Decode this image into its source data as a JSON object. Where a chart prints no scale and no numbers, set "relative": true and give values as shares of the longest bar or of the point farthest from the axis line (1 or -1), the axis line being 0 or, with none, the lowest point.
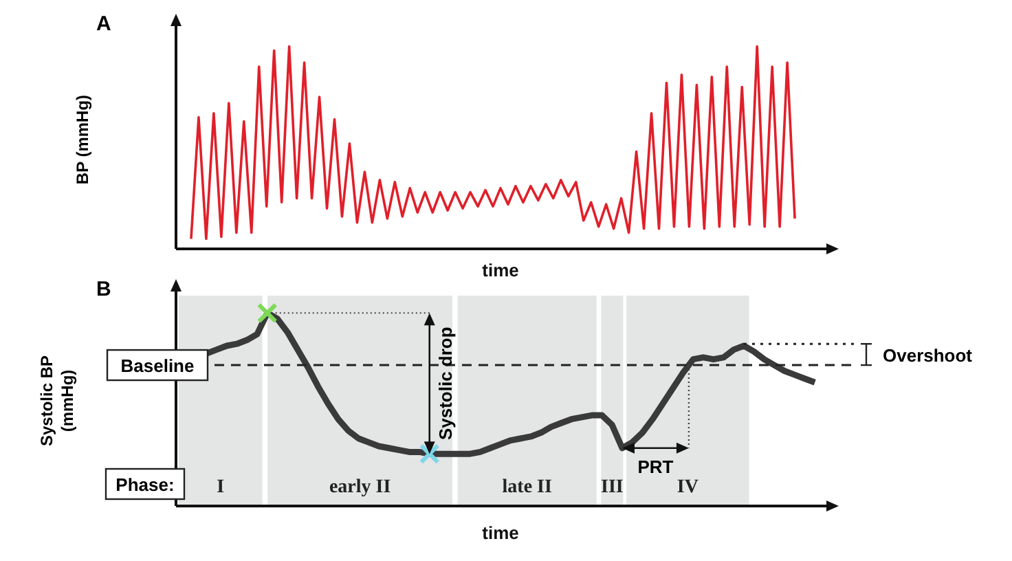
{
  "chart_data": [
    {
      "type": "line",
      "title": "A",
      "xlabel": "time",
      "ylabel": "BP (mmHg)",
      "relative": true,
      "legend": false,
      "grid": false,
      "marker": "none",
      "line_style": "solid",
      "categories": [
        null,
        null,
        null,
        null,
        null,
        null,
        null,
        null,
        null,
        null,
        null,
        null,
        null,
        null,
        null,
        null,
        null,
        null,
        null,
        null,
        null,
        null,
        null,
        null,
        null,
        null,
        null,
        null,
        null,
        null,
        null,
        null,
        null,
        null,
        null,
        null,
        null,
        null,
        null,
        null,
        null,
        null,
        null,
        null,
        null,
        null,
        null,
        null,
        null,
        null,
        null,
        null,
        null,
        null,
        null,
        null,
        null,
        null,
        null,
        null,
        null,
        null,
        null,
        null,
        null,
        null,
        null,
        null,
        null,
        null,
        null,
        null,
        null,
        null,
        null,
        null,
        null,
        null,
        null,
        null,
        null
      ],
      "series": [
        {
          "color": "#e0202a",
          "values": [
            0.05,
            0.65,
            0.05,
            0.67,
            0.06,
            0.72,
            0.08,
            0.63,
            0.08,
            0.9,
            0.21,
            0.98,
            0.23,
            1.0,
            0.25,
            0.92,
            0.25,
            0.75,
            0.2,
            0.64,
            0.16,
            0.52,
            0.13,
            0.38,
            0.13,
            0.34,
            0.15,
            0.33,
            0.16,
            0.3,
            0.18,
            0.28,
            0.18,
            0.28,
            0.19,
            0.28,
            0.2,
            0.28,
            0.21,
            0.29,
            0.21,
            0.3,
            0.22,
            0.31,
            0.23,
            0.31,
            0.24,
            0.32,
            0.25,
            0.34,
            0.26,
            0.33,
            0.14,
            0.23,
            0.11,
            0.22,
            0.1,
            0.25,
            0.08,
            0.48,
            0.1,
            0.67,
            0.1,
            0.82,
            0.11,
            0.86,
            0.11,
            0.81,
            0.1,
            0.85,
            0.11,
            0.9,
            0.11,
            0.8,
            0.12,
            1.0,
            0.11,
            0.9,
            0.11,
            0.92,
            0.15
          ]
        }
      ]
    },
    {
      "type": "line",
      "title": "B",
      "xlabel": "time",
      "ylabel": "Systolic BP (mmHg)",
      "relative": true,
      "legend": false,
      "grid": false,
      "marker": "none",
      "line_style": "solid",
      "categories": [
        null,
        null,
        null,
        null,
        null,
        null,
        null,
        null,
        null,
        null,
        null,
        null,
        null,
        null,
        null,
        null,
        null,
        null,
        null,
        null,
        null,
        null,
        null,
        null,
        null,
        null,
        null,
        null,
        null,
        null,
        null,
        null,
        null,
        null,
        null,
        null,
        null,
        null,
        null,
        null,
        null,
        null,
        null,
        null,
        null,
        null,
        null,
        null,
        null,
        null,
        null,
        null,
        null,
        null,
        null,
        null,
        null,
        null,
        null,
        null,
        null
      ],
      "series": [
        {
          "color": "#3a3a3a",
          "values": [
            0.79,
            0.81,
            0.83,
            0.84,
            0.86,
            0.89,
            1.0,
            0.97,
            0.9,
            0.81,
            0.72,
            0.62,
            0.53,
            0.45,
            0.39,
            0.35,
            0.33,
            0.31,
            0.3,
            0.29,
            0.28,
            0.28,
            0.27,
            0.27,
            0.27,
            0.27,
            0.27,
            0.28,
            0.3,
            0.32,
            0.34,
            0.35,
            0.36,
            0.38,
            0.41,
            0.43,
            0.45,
            0.46,
            0.47,
            0.47,
            0.42,
            0.3,
            0.33,
            0.38,
            0.45,
            0.53,
            0.61,
            0.69,
            0.76,
            0.77,
            0.76,
            0.77,
            0.81,
            0.83,
            0.8,
            0.76,
            0.73,
            0.7,
            0.68,
            0.66,
            0.64
          ]
        }
      ],
      "ref_lines": [
        {
          "axis": "y",
          "value": 0.73,
          "label": "Baseline",
          "line_style": "dashed",
          "color": "#222222"
        },
        {
          "axis": "y",
          "value": 0.84,
          "label": "Overshoot",
          "line_style": "dotted",
          "color": "#222222"
        }
      ],
      "annotations": [
        "Phase:",
        "I",
        "early II",
        "late II",
        "III",
        "IV",
        "Systolic drop",
        "PRT"
      ]
    }
  ]
}
